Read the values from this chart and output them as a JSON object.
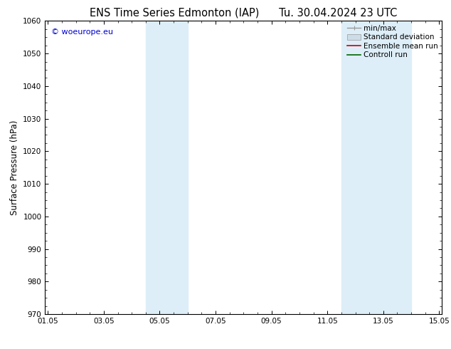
{
  "title_left": "ENS Time Series Edmonton (IAP)",
  "title_right": "Tu. 30.04.2024 23 UTC",
  "ylabel": "Surface Pressure (hPa)",
  "xlabel_ticks": [
    "01.05",
    "03.05",
    "05.05",
    "07.05",
    "09.05",
    "11.05",
    "13.05",
    "15.05"
  ],
  "xlabel_values": [
    0,
    2,
    4,
    6,
    8,
    10,
    12,
    14
  ],
  "ylim": [
    970,
    1060
  ],
  "xlim": [
    -0.1,
    14.1
  ],
  "yticks": [
    970,
    980,
    990,
    1000,
    1010,
    1020,
    1030,
    1040,
    1050,
    1060
  ],
  "shaded_bands": [
    {
      "x_start": 3.5,
      "x_end": 5.0
    },
    {
      "x_start": 10.5,
      "x_end": 13.0
    }
  ],
  "band_color": "#ddeef8",
  "background_color": "#ffffff",
  "watermark_text": "© woeurope.eu",
  "watermark_color": "#0000cc",
  "legend_items": [
    {
      "label": "min/max",
      "color": "#999999",
      "lw": 1.0
    },
    {
      "label": "Standard deviation",
      "color": "#ccdde8",
      "lw": 5
    },
    {
      "label": "Ensemble mean run",
      "color": "#cc0000",
      "lw": 1.2
    },
    {
      "label": "Controll run",
      "color": "#006600",
      "lw": 1.2
    }
  ],
  "title_fontsize": 10.5,
  "tick_fontsize": 7.5,
  "ylabel_fontsize": 8.5,
  "legend_fontsize": 7.5
}
